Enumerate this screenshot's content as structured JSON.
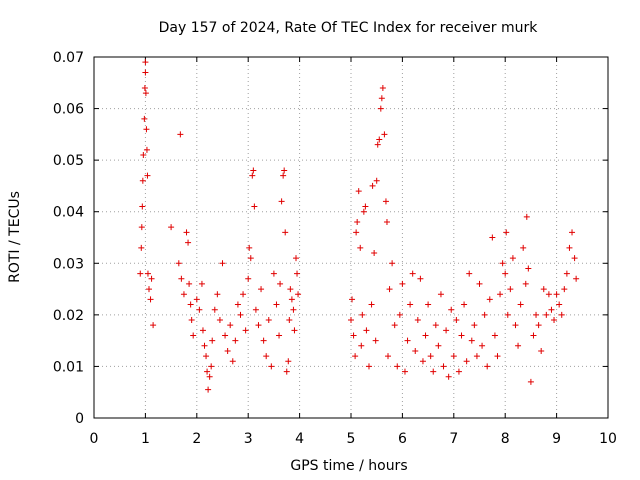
{
  "chart_data": {
    "type": "scatter",
    "title": "Day 157 of 2024, Rate Of TEC Index for receiver murk",
    "xlabel": "GPS time / hours",
    "ylabel": "ROTI / TECUs",
    "xlim": [
      0,
      10
    ],
    "ylim": [
      0,
      0.07
    ],
    "xticks": [
      "0",
      "1",
      "2",
      "3",
      "4",
      "5",
      "6",
      "7",
      "8",
      "9",
      "10"
    ],
    "yticks": [
      "0",
      "0.01",
      "0.02",
      "0.03",
      "0.04",
      "0.05",
      "0.06",
      "0.07"
    ],
    "grid": true,
    "series": [
      {
        "name": "ROTI",
        "color": "#e00000",
        "marker": "plus",
        "points": [
          [
            0.9,
            0.028
          ],
          [
            0.92,
            0.033
          ],
          [
            0.93,
            0.037
          ],
          [
            0.94,
            0.041
          ],
          [
            0.95,
            0.046
          ],
          [
            0.96,
            0.051
          ],
          [
            0.98,
            0.058
          ],
          [
            0.99,
            0.064
          ],
          [
            1.0,
            0.067
          ],
          [
            1.0,
            0.069
          ],
          [
            1.01,
            0.063
          ],
          [
            1.02,
            0.056
          ],
          [
            1.03,
            0.052
          ],
          [
            1.04,
            0.047
          ],
          [
            1.05,
            0.028
          ],
          [
            1.07,
            0.025
          ],
          [
            1.1,
            0.023
          ],
          [
            1.12,
            0.027
          ],
          [
            1.15,
            0.018
          ],
          [
            1.5,
            0.037
          ],
          [
            1.65,
            0.03
          ],
          [
            1.68,
            0.055
          ],
          [
            1.7,
            0.027
          ],
          [
            1.75,
            0.024
          ],
          [
            1.8,
            0.036
          ],
          [
            1.83,
            0.034
          ],
          [
            1.85,
            0.026
          ],
          [
            1.88,
            0.022
          ],
          [
            1.9,
            0.019
          ],
          [
            1.93,
            0.016
          ],
          [
            2.0,
            0.023
          ],
          [
            2.05,
            0.021
          ],
          [
            2.1,
            0.026
          ],
          [
            2.12,
            0.017
          ],
          [
            2.15,
            0.014
          ],
          [
            2.18,
            0.012
          ],
          [
            2.2,
            0.009
          ],
          [
            2.22,
            0.0055
          ],
          [
            2.25,
            0.008
          ],
          [
            2.28,
            0.01
          ],
          [
            2.3,
            0.015
          ],
          [
            2.35,
            0.021
          ],
          [
            2.4,
            0.024
          ],
          [
            2.45,
            0.019
          ],
          [
            2.5,
            0.03
          ],
          [
            2.55,
            0.016
          ],
          [
            2.6,
            0.013
          ],
          [
            2.65,
            0.018
          ],
          [
            2.7,
            0.011
          ],
          [
            2.75,
            0.015
          ],
          [
            2.8,
            0.022
          ],
          [
            2.85,
            0.02
          ],
          [
            2.9,
            0.024
          ],
          [
            2.95,
            0.017
          ],
          [
            3.0,
            0.027
          ],
          [
            3.02,
            0.033
          ],
          [
            3.05,
            0.031
          ],
          [
            3.08,
            0.047
          ],
          [
            3.1,
            0.048
          ],
          [
            3.12,
            0.041
          ],
          [
            3.15,
            0.021
          ],
          [
            3.2,
            0.018
          ],
          [
            3.25,
            0.025
          ],
          [
            3.3,
            0.015
          ],
          [
            3.35,
            0.012
          ],
          [
            3.4,
            0.019
          ],
          [
            3.45,
            0.01
          ],
          [
            3.5,
            0.028
          ],
          [
            3.55,
            0.022
          ],
          [
            3.6,
            0.016
          ],
          [
            3.62,
            0.026
          ],
          [
            3.65,
            0.042
          ],
          [
            3.68,
            0.047
          ],
          [
            3.7,
            0.048
          ],
          [
            3.72,
            0.036
          ],
          [
            3.75,
            0.009
          ],
          [
            3.78,
            0.011
          ],
          [
            3.8,
            0.019
          ],
          [
            3.82,
            0.025
          ],
          [
            3.85,
            0.023
          ],
          [
            3.88,
            0.021
          ],
          [
            3.9,
            0.017
          ],
          [
            3.93,
            0.031
          ],
          [
            3.95,
            0.028
          ],
          [
            3.97,
            0.024
          ],
          [
            5.0,
            0.019
          ],
          [
            5.02,
            0.023
          ],
          [
            5.05,
            0.016
          ],
          [
            5.08,
            0.012
          ],
          [
            5.1,
            0.036
          ],
          [
            5.12,
            0.038
          ],
          [
            5.15,
            0.044
          ],
          [
            5.18,
            0.033
          ],
          [
            5.2,
            0.014
          ],
          [
            5.22,
            0.02
          ],
          [
            5.25,
            0.04
          ],
          [
            5.28,
            0.041
          ],
          [
            5.3,
            0.017
          ],
          [
            5.35,
            0.01
          ],
          [
            5.4,
            0.022
          ],
          [
            5.42,
            0.045
          ],
          [
            5.45,
            0.032
          ],
          [
            5.48,
            0.015
          ],
          [
            5.5,
            0.046
          ],
          [
            5.52,
            0.053
          ],
          [
            5.55,
            0.054
          ],
          [
            5.58,
            0.06
          ],
          [
            5.6,
            0.062
          ],
          [
            5.62,
            0.064
          ],
          [
            5.65,
            0.055
          ],
          [
            5.68,
            0.042
          ],
          [
            5.7,
            0.038
          ],
          [
            5.72,
            0.012
          ],
          [
            5.75,
            0.025
          ],
          [
            5.8,
            0.03
          ],
          [
            5.85,
            0.018
          ],
          [
            5.9,
            0.01
          ],
          [
            5.95,
            0.02
          ],
          [
            6.0,
            0.026
          ],
          [
            6.05,
            0.009
          ],
          [
            6.1,
            0.015
          ],
          [
            6.15,
            0.022
          ],
          [
            6.2,
            0.028
          ],
          [
            6.25,
            0.013
          ],
          [
            6.3,
            0.019
          ],
          [
            6.35,
            0.027
          ],
          [
            6.4,
            0.011
          ],
          [
            6.45,
            0.016
          ],
          [
            6.5,
            0.022
          ],
          [
            6.55,
            0.012
          ],
          [
            6.6,
            0.009
          ],
          [
            6.65,
            0.018
          ],
          [
            6.7,
            0.014
          ],
          [
            6.75,
            0.024
          ],
          [
            6.8,
            0.01
          ],
          [
            6.85,
            0.017
          ],
          [
            6.9,
            0.008
          ],
          [
            6.95,
            0.021
          ],
          [
            7.0,
            0.012
          ],
          [
            7.05,
            0.019
          ],
          [
            7.1,
            0.009
          ],
          [
            7.15,
            0.016
          ],
          [
            7.2,
            0.022
          ],
          [
            7.25,
            0.011
          ],
          [
            7.3,
            0.028
          ],
          [
            7.35,
            0.015
          ],
          [
            7.4,
            0.018
          ],
          [
            7.45,
            0.012
          ],
          [
            7.5,
            0.026
          ],
          [
            7.55,
            0.014
          ],
          [
            7.6,
            0.02
          ],
          [
            7.65,
            0.01
          ],
          [
            7.7,
            0.023
          ],
          [
            7.75,
            0.035
          ],
          [
            7.8,
            0.016
          ],
          [
            7.85,
            0.012
          ],
          [
            7.9,
            0.024
          ],
          [
            7.95,
            0.03
          ],
          [
            8.0,
            0.028
          ],
          [
            8.02,
            0.036
          ],
          [
            8.05,
            0.02
          ],
          [
            8.1,
            0.025
          ],
          [
            8.15,
            0.031
          ],
          [
            8.2,
            0.018
          ],
          [
            8.25,
            0.014
          ],
          [
            8.3,
            0.022
          ],
          [
            8.35,
            0.033
          ],
          [
            8.4,
            0.026
          ],
          [
            8.42,
            0.039
          ],
          [
            8.45,
            0.029
          ],
          [
            8.5,
            0.007
          ],
          [
            8.55,
            0.016
          ],
          [
            8.6,
            0.02
          ],
          [
            8.65,
            0.018
          ],
          [
            8.7,
            0.013
          ],
          [
            8.75,
            0.025
          ],
          [
            8.8,
            0.02
          ],
          [
            8.85,
            0.024
          ],
          [
            8.9,
            0.021
          ],
          [
            8.95,
            0.019
          ],
          [
            9.0,
            0.024
          ],
          [
            9.05,
            0.022
          ],
          [
            9.1,
            0.02
          ],
          [
            9.15,
            0.025
          ],
          [
            9.2,
            0.028
          ],
          [
            9.25,
            0.033
          ],
          [
            9.3,
            0.036
          ],
          [
            9.35,
            0.031
          ],
          [
            9.38,
            0.027
          ]
        ]
      }
    ]
  }
}
